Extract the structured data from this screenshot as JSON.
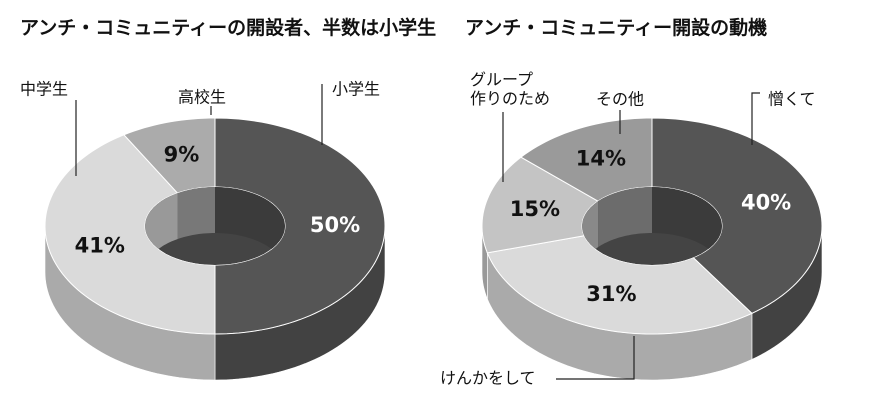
{
  "chart_data": [
    {
      "type": "pie",
      "title": "アンチ・コミュニティーの開設者、半数は小学生",
      "categories": [
        "小学生",
        "中学生",
        "高校生"
      ],
      "values": [
        50,
        41,
        9
      ],
      "value_labels": [
        "50%",
        "41%",
        "9%"
      ],
      "colors": [
        "#555555",
        "#dadada",
        "#ababab"
      ]
    },
    {
      "type": "pie",
      "title": "アンチ・コミュニティー開設の動機",
      "categories": [
        "憎くて",
        "けんかをして",
        "グループ\n作りのため",
        "その他"
      ],
      "values": [
        40,
        31,
        15,
        14
      ],
      "value_labels": [
        "40%",
        "31%",
        "15%",
        "14%"
      ],
      "colors": [
        "#555555",
        "#dadada",
        "#c4c4c4",
        "#9a9a9a"
      ]
    }
  ]
}
